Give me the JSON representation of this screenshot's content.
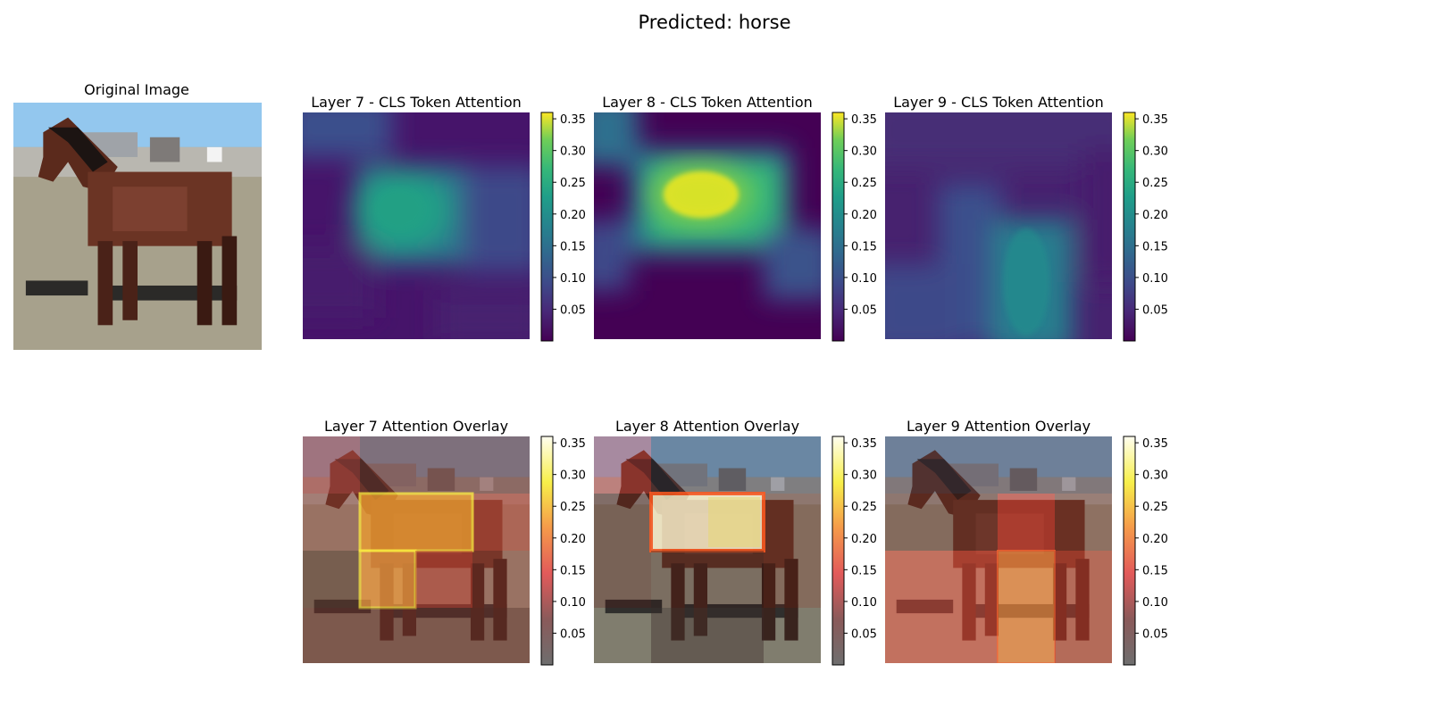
{
  "figure": {
    "suptitle": "Predicted: horse"
  },
  "original": {
    "title": "Original Image"
  },
  "colorbar_ticks": [
    "0.05",
    "0.10",
    "0.15",
    "0.20",
    "0.25",
    "0.30",
    "0.35"
  ],
  "colorbar_tick_values": [
    0.05,
    0.1,
    0.15,
    0.2,
    0.25,
    0.3,
    0.35
  ],
  "chart_data": [
    {
      "type": "heatmap",
      "title": "Layer 7 - CLS Token Attention",
      "colormap": "viridis",
      "clim": [
        0.0,
        0.36
      ],
      "grid": false,
      "attention_peak": 0.2,
      "attention_peak_location": "center-left"
    },
    {
      "type": "heatmap",
      "title": "Layer 8 - CLS Token Attention",
      "colormap": "viridis",
      "clim": [
        0.0,
        0.36
      ],
      "grid": false,
      "attention_peak": 0.36,
      "attention_peak_location": "upper-center"
    },
    {
      "type": "heatmap",
      "title": "Layer 9 - CLS Token Attention",
      "colormap": "viridis",
      "clim": [
        0.0,
        0.36
      ],
      "grid": false,
      "attention_peak": 0.17,
      "attention_peak_location": "lower-right-center"
    },
    {
      "type": "heatmap",
      "title": "Layer 7 Attention Overlay",
      "colormap": "hot",
      "clim": [
        0.0,
        0.36
      ],
      "grid": false
    },
    {
      "type": "heatmap",
      "title": "Layer 8 Attention Overlay",
      "colormap": "hot",
      "clim": [
        0.0,
        0.36
      ],
      "grid": false
    },
    {
      "type": "heatmap",
      "title": "Layer 9 Attention Overlay",
      "colormap": "hot",
      "clim": [
        0.0,
        0.36
      ],
      "grid": false
    }
  ],
  "colors": {
    "sky": "#8ec5f0",
    "ground": "#a9a38e",
    "horse": "#6b3424",
    "viridis_low": "#440154",
    "viridis_high": "#fde725"
  }
}
